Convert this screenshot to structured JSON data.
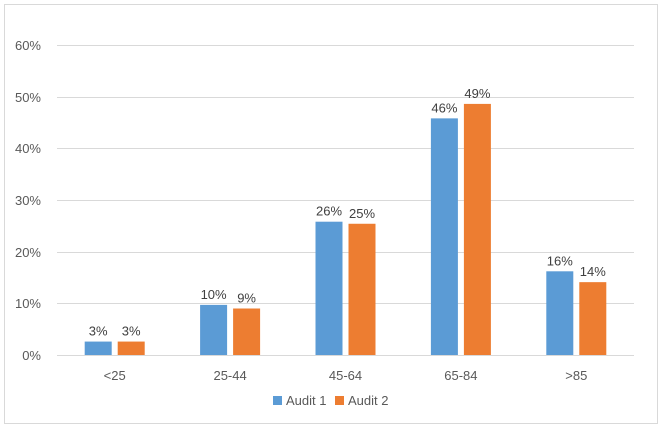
{
  "chart_data": {
    "type": "bar",
    "categories": [
      "<25",
      "25-44",
      "45-64",
      "65-84",
      ">85"
    ],
    "series": [
      {
        "name": "Audit 1",
        "color": "#5b9bd5",
        "values": [
          2.6,
          9.7,
          25.8,
          45.8,
          16.2
        ],
        "labels": [
          "3%",
          "10%",
          "26%",
          "46%",
          "16%"
        ]
      },
      {
        "name": "Audit 2",
        "color": "#ed7d31",
        "values": [
          2.6,
          9.0,
          25.4,
          48.6,
          14.1
        ],
        "labels": [
          "3%",
          "9%",
          "25%",
          "49%",
          "14%"
        ]
      }
    ],
    "ylim": [
      0,
      60
    ],
    "yticks": [
      0,
      10,
      20,
      30,
      40,
      50,
      60
    ],
    "ytick_labels": [
      "0%",
      "10%",
      "20%",
      "30%",
      "40%",
      "50%",
      "60%"
    ],
    "title": "",
    "xlabel": "",
    "ylabel": "",
    "grid": true,
    "gridline_color": "#d9d9d9",
    "legend_position": "bottom"
  }
}
